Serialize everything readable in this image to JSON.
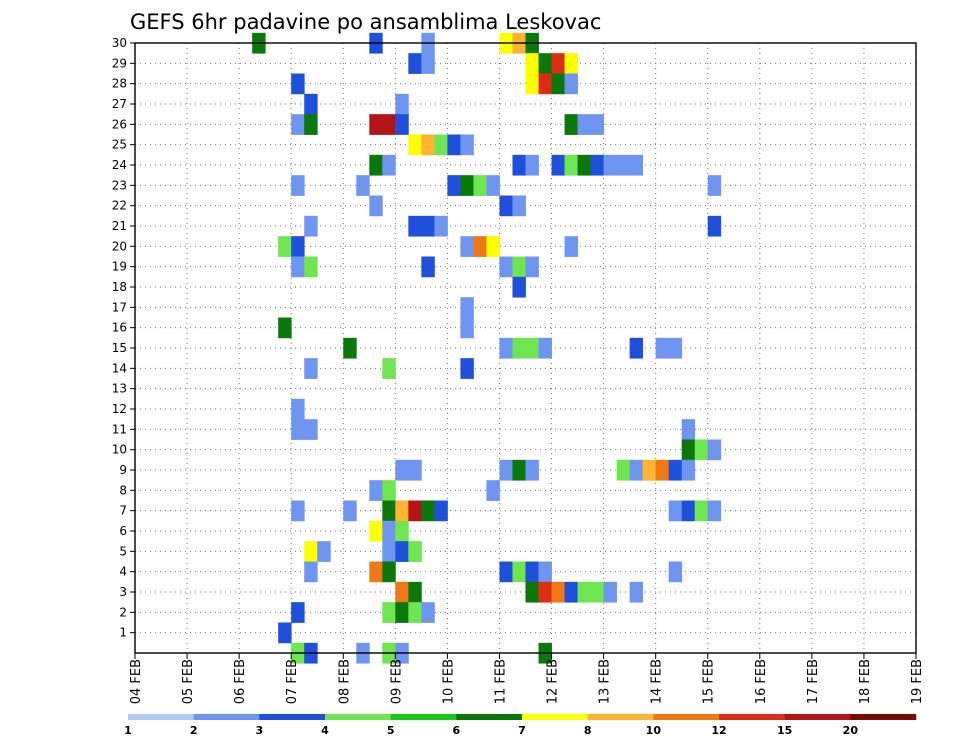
{
  "chart_data": {
    "type": "heatmap",
    "title": "GEFS 6hr padavine po ansamblima Leskovac",
    "xlabel": "",
    "ylabel": "",
    "x_ticks": [
      "04 FEB",
      "05 FEB",
      "06 FEB",
      "07 FEB",
      "08 FEB",
      "09 FEB",
      "10 FEB",
      "11 FEB",
      "12 FEB",
      "13 FEB",
      "14 FEB",
      "15 FEB",
      "16 FEB",
      "17 FEB",
      "18 FEB",
      "19 FEB"
    ],
    "y_ticks": [
      "1",
      "2",
      "3",
      "4",
      "5",
      "6",
      "7",
      "8",
      "9",
      "10",
      "11",
      "12",
      "13",
      "14",
      "15",
      "16",
      "17",
      "18",
      "19",
      "20",
      "21",
      "22",
      "23",
      "24",
      "25",
      "26",
      "27",
      "28",
      "29",
      "30"
    ],
    "x_step_hours": 6,
    "y_range": [
      0,
      30
    ],
    "grid": true,
    "legend": {
      "position": "bottom",
      "labels": [
        "1",
        "2",
        "3",
        "4",
        "5",
        "6",
        "7",
        "8",
        "10",
        "12",
        "15",
        "20"
      ],
      "colors": [
        "#b4c8fa",
        "#6e96f0",
        "#1e50dc",
        "#6ee650",
        "#14c814",
        "#0a780a",
        "#ffff00",
        "#ffb432",
        "#f07814",
        "#dc2d14",
        "#b41414",
        "#780a0a"
      ]
    },
    "cells": [
      [
        9,
        30,
        5
      ],
      [
        18,
        30,
        2
      ],
      [
        22,
        30,
        1
      ],
      [
        28,
        30,
        6
      ],
      [
        29,
        30,
        7
      ],
      [
        30,
        30,
        5
      ],
      [
        21,
        29,
        2
      ],
      [
        22,
        29,
        1
      ],
      [
        30,
        29,
        6
      ],
      [
        31,
        29,
        5
      ],
      [
        32,
        29,
        9
      ],
      [
        33,
        29,
        6
      ],
      [
        12,
        28,
        2
      ],
      [
        30,
        28,
        6
      ],
      [
        31,
        28,
        9
      ],
      [
        32,
        28,
        5
      ],
      [
        33,
        28,
        1
      ],
      [
        13,
        27,
        2
      ],
      [
        20,
        27,
        1
      ],
      [
        12,
        26,
        1
      ],
      [
        13,
        26,
        5
      ],
      [
        18,
        26,
        10
      ],
      [
        19,
        26,
        10
      ],
      [
        20,
        26,
        2
      ],
      [
        33,
        26,
        5
      ],
      [
        34,
        26,
        1
      ],
      [
        35,
        26,
        1
      ],
      [
        21,
        25,
        6
      ],
      [
        22,
        25,
        7
      ],
      [
        23,
        25,
        3
      ],
      [
        24,
        25,
        2
      ],
      [
        25,
        25,
        1
      ],
      [
        18,
        24,
        5
      ],
      [
        19,
        24,
        1
      ],
      [
        29,
        24,
        2
      ],
      [
        30,
        24,
        1
      ],
      [
        32,
        24,
        2
      ],
      [
        33,
        24,
        3
      ],
      [
        34,
        24,
        5
      ],
      [
        35,
        24,
        2
      ],
      [
        36,
        24,
        1
      ],
      [
        37,
        24,
        1
      ],
      [
        38,
        24,
        1
      ],
      [
        12,
        23,
        1
      ],
      [
        17,
        23,
        1
      ],
      [
        24,
        23,
        2
      ],
      [
        25,
        23,
        5
      ],
      [
        26,
        23,
        3
      ],
      [
        27,
        23,
        1
      ],
      [
        44,
        23,
        1
      ],
      [
        18,
        22,
        1
      ],
      [
        28,
        22,
        2
      ],
      [
        29,
        22,
        1
      ],
      [
        13,
        21,
        1
      ],
      [
        21,
        21,
        2
      ],
      [
        22,
        21,
        2
      ],
      [
        23,
        21,
        1
      ],
      [
        44,
        21,
        2
      ],
      [
        11,
        20,
        3
      ],
      [
        12,
        20,
        2
      ],
      [
        25,
        20,
        1
      ],
      [
        26,
        20,
        8
      ],
      [
        27,
        20,
        6
      ],
      [
        33,
        20,
        1
      ],
      [
        12,
        19,
        1
      ],
      [
        13,
        19,
        3
      ],
      [
        22,
        19,
        2
      ],
      [
        28,
        19,
        1
      ],
      [
        29,
        19,
        3
      ],
      [
        30,
        19,
        1
      ],
      [
        29,
        18,
        2
      ],
      [
        25,
        17,
        1
      ],
      [
        11,
        16,
        5
      ],
      [
        25,
        16,
        1
      ],
      [
        16,
        15,
        5
      ],
      [
        28,
        15,
        1
      ],
      [
        29,
        15,
        3
      ],
      [
        30,
        15,
        3
      ],
      [
        31,
        15,
        1
      ],
      [
        38,
        15,
        2
      ],
      [
        40,
        15,
        1
      ],
      [
        41,
        15,
        1
      ],
      [
        13,
        14,
        1
      ],
      [
        19,
        14,
        3
      ],
      [
        25,
        14,
        2
      ],
      [
        12,
        12,
        1
      ],
      [
        12,
        11,
        1
      ],
      [
        13,
        11,
        1
      ],
      [
        42,
        11,
        1
      ],
      [
        42,
        10,
        5
      ],
      [
        43,
        10,
        3
      ],
      [
        44,
        10,
        1
      ],
      [
        20,
        9,
        1
      ],
      [
        21,
        9,
        1
      ],
      [
        28,
        9,
        1
      ],
      [
        29,
        9,
        5
      ],
      [
        30,
        9,
        1
      ],
      [
        37,
        9,
        3
      ],
      [
        38,
        9,
        1
      ],
      [
        39,
        9,
        7
      ],
      [
        40,
        9,
        8
      ],
      [
        41,
        9,
        2
      ],
      [
        42,
        9,
        1
      ],
      [
        18,
        8,
        1
      ],
      [
        19,
        8,
        3
      ],
      [
        27,
        8,
        1
      ],
      [
        12,
        7,
        1
      ],
      [
        16,
        7,
        1
      ],
      [
        19,
        7,
        5
      ],
      [
        20,
        7,
        7
      ],
      [
        21,
        7,
        10
      ],
      [
        22,
        7,
        5
      ],
      [
        23,
        7,
        2
      ],
      [
        41,
        7,
        1
      ],
      [
        42,
        7,
        2
      ],
      [
        43,
        7,
        3
      ],
      [
        44,
        7,
        1
      ],
      [
        18,
        6,
        6
      ],
      [
        19,
        6,
        1
      ],
      [
        20,
        6,
        3
      ],
      [
        13,
        5,
        6
      ],
      [
        14,
        5,
        1
      ],
      [
        19,
        5,
        1
      ],
      [
        20,
        5,
        2
      ],
      [
        21,
        5,
        3
      ],
      [
        13,
        4,
        1
      ],
      [
        18,
        4,
        8
      ],
      [
        19,
        4,
        5
      ],
      [
        28,
        4,
        2
      ],
      [
        29,
        4,
        3
      ],
      [
        30,
        4,
        2
      ],
      [
        31,
        4,
        1
      ],
      [
        41,
        4,
        1
      ],
      [
        20,
        3,
        8
      ],
      [
        21,
        3,
        5
      ],
      [
        30,
        3,
        5
      ],
      [
        31,
        3,
        9
      ],
      [
        32,
        3,
        8
      ],
      [
        33,
        3,
        2
      ],
      [
        34,
        3,
        3
      ],
      [
        35,
        3,
        3
      ],
      [
        36,
        3,
        1
      ],
      [
        38,
        3,
        1
      ],
      [
        12,
        2,
        2
      ],
      [
        19,
        2,
        3
      ],
      [
        20,
        2,
        5
      ],
      [
        21,
        2,
        3
      ],
      [
        22,
        2,
        1
      ],
      [
        11,
        1,
        2
      ],
      [
        12,
        0,
        3
      ],
      [
        13,
        0,
        2
      ],
      [
        17,
        0,
        1
      ],
      [
        19,
        0,
        3
      ],
      [
        20,
        0,
        1
      ],
      [
        31,
        0,
        5
      ]
    ]
  }
}
